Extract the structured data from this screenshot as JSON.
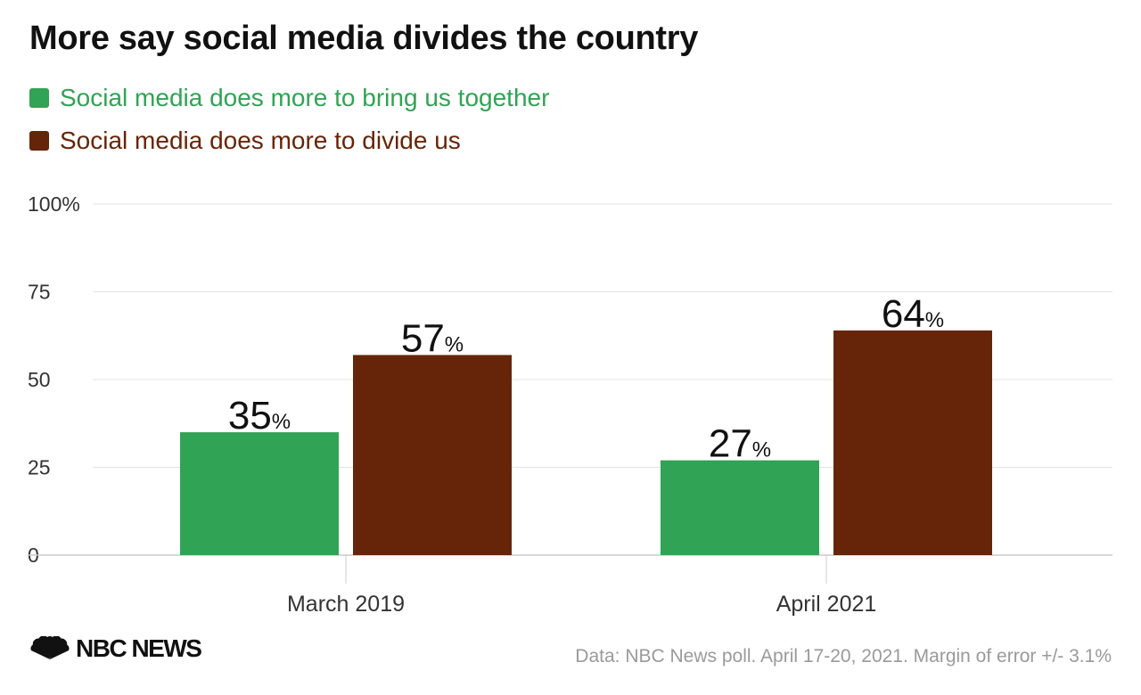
{
  "colors": {
    "together": "#31a354",
    "divide": "#662508",
    "grid": "#e3e3e3",
    "axis": "#cccccc",
    "text": "#111111",
    "muted": "#9a9a9a"
  },
  "logo": {
    "icon": "nbc-peacock-icon",
    "text": "NBC NEWS"
  },
  "source": "Data: NBC News poll. April 17-20, 2021. Margin of error +/- 3.1%",
  "chart_data": {
    "type": "bar",
    "title": "More say social media divides the country",
    "categories": [
      "March 2019",
      "April 2021"
    ],
    "series": [
      {
        "name": "Social media does more to bring us together",
        "values": [
          35,
          27
        ],
        "color": "#31a354"
      },
      {
        "name": "Social media does more to divide us",
        "values": [
          57,
          64
        ],
        "color": "#662508"
      }
    ],
    "yticks": [
      "0",
      "25",
      "50",
      "75",
      "100%"
    ],
    "ytick_values": [
      0,
      25,
      50,
      75,
      100
    ],
    "ylim": [
      0,
      100
    ],
    "value_suffix": "%",
    "legend": "top-left",
    "grid": true
  }
}
